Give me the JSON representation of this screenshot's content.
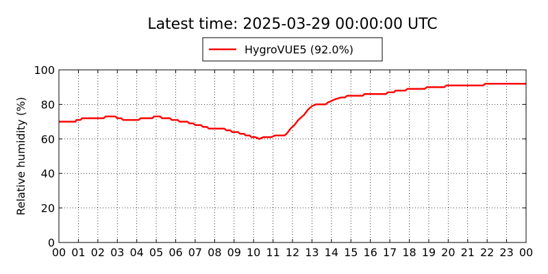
{
  "chart_data": {
    "type": "line",
    "title": "Latest time: 2025-03-29 00:00:00 UTC",
    "xlabel": "",
    "ylabel": "Relative humidity (%)",
    "xlim": [
      0,
      24
    ],
    "ylim": [
      0,
      100
    ],
    "grid": true,
    "legend_position": "top-center",
    "x_ticks": [
      0,
      1,
      2,
      3,
      4,
      5,
      6,
      7,
      8,
      9,
      10,
      11,
      12,
      13,
      14,
      15,
      16,
      17,
      18,
      19,
      20,
      21,
      22,
      23,
      24
    ],
    "x_tick_labels": [
      "00",
      "01",
      "02",
      "03",
      "04",
      "05",
      "06",
      "07",
      "08",
      "09",
      "10",
      "11",
      "12",
      "13",
      "14",
      "15",
      "16",
      "17",
      "18",
      "19",
      "20",
      "21",
      "22",
      "23",
      "00"
    ],
    "y_ticks": [
      0,
      20,
      40,
      60,
      80,
      100
    ],
    "y_tick_labels": [
      "0",
      "20",
      "40",
      "60",
      "80",
      "100"
    ],
    "series": [
      {
        "name": "HygroVUE5 (92.0%)",
        "color": "#ff0000",
        "x": [
          0,
          0.85,
          0.9,
          1.1,
          1.2,
          2.3,
          2.4,
          2.9,
          3.0,
          3.2,
          3.3,
          4.1,
          4.2,
          4.8,
          4.9,
          5.2,
          5.3,
          5.7,
          5.8,
          6.1,
          6.2,
          6.6,
          6.7,
          6.9,
          7.0,
          7.3,
          7.4,
          7.6,
          7.7,
          8.0,
          8.1,
          8.5,
          8.6,
          8.8,
          8.9,
          9.2,
          9.3,
          9.5,
          9.6,
          9.8,
          9.9,
          10.1,
          10.3,
          10.5,
          10.7,
          10.9,
          11.1,
          11.6,
          11.7,
          11.9,
          12.1,
          12.3,
          12.6,
          12.8,
          13.0,
          13.2,
          13.5,
          13.7,
          13.8,
          14.0,
          14.2,
          14.5,
          14.7,
          14.8,
          15.6,
          15.7,
          16.8,
          16.9,
          17.2,
          17.3,
          17.8,
          17.9,
          18.8,
          18.9,
          19.8,
          19.9,
          21.8,
          21.9,
          24.0
        ],
        "values": [
          70,
          70,
          71,
          71,
          72,
          72,
          73,
          73,
          72,
          72,
          71,
          71,
          72,
          72,
          73,
          73,
          72,
          72,
          71,
          71,
          70,
          70,
          69,
          69,
          68,
          68,
          67,
          67,
          66,
          66,
          66,
          66,
          65,
          65,
          64,
          64,
          63,
          63,
          62,
          62,
          61,
          61,
          60,
          61,
          61,
          61,
          62,
          62,
          63,
          66,
          68,
          71,
          74,
          77,
          79,
          80,
          80,
          80,
          81,
          82,
          83,
          84,
          84,
          85,
          85,
          86,
          86,
          87,
          87,
          88,
          88,
          89,
          89,
          90,
          90,
          91,
          91,
          92,
          92
        ]
      }
    ]
  }
}
